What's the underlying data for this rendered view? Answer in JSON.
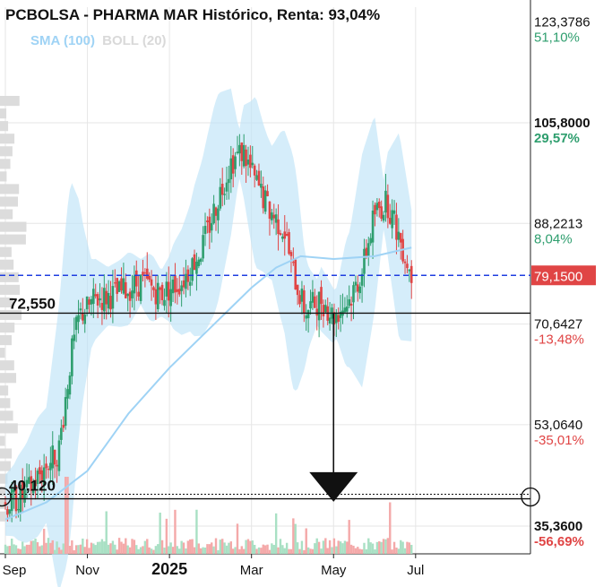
{
  "chart_data": {
    "type": "candlestick",
    "title": "PCBOLSA - PHARMA MAR Histórico, Renta: 93,04%",
    "legend": {
      "sma": "SMA (100)",
      "boll": "BOLL (20)"
    },
    "ylim": [
      30.5,
      126
    ],
    "x_ticks": [
      {
        "label": "Sep",
        "month": 0.0
      },
      {
        "label": "Nov",
        "month": 2.0
      },
      {
        "label": "2025",
        "month": 4.0,
        "bold": true
      },
      {
        "label": "Mar",
        "month": 6.0
      },
      {
        "label": "May",
        "month": 8.0
      },
      {
        "label": "Jul",
        "month": 10.0
      }
    ],
    "x_range_months": [
      0,
      12.8
    ],
    "y_levels": [
      {
        "price": "123,3786",
        "pct": "51,10%",
        "value": 123.3786,
        "pct_color": "#2e9e6e",
        "line": false,
        "bold": false
      },
      {
        "price": "105,8000",
        "pct": "29,57%",
        "value": 105.8,
        "pct_color": "#2e9e6e",
        "line": true,
        "bold": true
      },
      {
        "price": "88,2213",
        "pct": "8,04%",
        "value": 88.2213,
        "pct_color": "#2e9e6e",
        "line": true,
        "bold": false
      },
      {
        "price": "70,6427",
        "pct": "-13,48%",
        "value": 70.6427,
        "pct_color": "#e04545",
        "line": true,
        "bold": false
      },
      {
        "price": "53,0640",
        "pct": "-35,01%",
        "value": 53.064,
        "pct_color": "#e04545",
        "line": true,
        "bold": false
      },
      {
        "price": "35,3600",
        "pct": "-56,69%",
        "value": 35.36,
        "pct_color": "#e04545",
        "line": true,
        "bold": true
      }
    ],
    "current_price": {
      "label": "79,1500",
      "value": 79.15,
      "color": "#e04545"
    },
    "support_levels": [
      {
        "label": "72,550",
        "value": 72.55
      },
      {
        "label": "40,120",
        "value": 40.12
      }
    ],
    "target_value": 39.6,
    "price_path": [
      {
        "month": 0.0,
        "close": 39.0
      },
      {
        "month": 0.5,
        "close": 41.0
      },
      {
        "month": 1.0,
        "close": 46.0
      },
      {
        "month": 1.3,
        "close": 48.5
      },
      {
        "month": 1.6,
        "close": 65.0
      },
      {
        "month": 1.8,
        "close": 72.0
      },
      {
        "month": 2.2,
        "close": 75.0
      },
      {
        "month": 2.8,
        "close": 76.0
      },
      {
        "month": 3.3,
        "close": 78.0
      },
      {
        "month": 3.8,
        "close": 76.0
      },
      {
        "month": 4.3,
        "close": 78.0
      },
      {
        "month": 4.8,
        "close": 84.0
      },
      {
        "month": 5.2,
        "close": 93.0
      },
      {
        "month": 5.5,
        "close": 99.0
      },
      {
        "month": 5.8,
        "close": 101.0
      },
      {
        "month": 6.0,
        "close": 97.0
      },
      {
        "month": 6.4,
        "close": 91.0
      },
      {
        "month": 6.8,
        "close": 87.0
      },
      {
        "month": 7.0,
        "close": 80.0
      },
      {
        "month": 7.3,
        "close": 73.0
      },
      {
        "month": 7.7,
        "close": 75.0
      },
      {
        "month": 8.0,
        "close": 72.0
      },
      {
        "month": 8.4,
        "close": 75.0
      },
      {
        "month": 8.7,
        "close": 80.0
      },
      {
        "month": 9.0,
        "close": 90.0
      },
      {
        "month": 9.3,
        "close": 92.0
      },
      {
        "month": 9.6,
        "close": 86.0
      },
      {
        "month": 9.9,
        "close": 79.15
      }
    ],
    "sma_100": [
      {
        "month": 0.0,
        "value": 36.5
      },
      {
        "month": 1.0,
        "value": 39.5
      },
      {
        "month": 2.0,
        "value": 45.0
      },
      {
        "month": 3.0,
        "value": 55.0
      },
      {
        "month": 4.0,
        "value": 63.0
      },
      {
        "month": 5.0,
        "value": 70.0
      },
      {
        "month": 6.0,
        "value": 77.0
      },
      {
        "month": 6.6,
        "value": 80.5
      },
      {
        "month": 7.2,
        "value": 82.5
      },
      {
        "month": 8.0,
        "value": 82.0
      },
      {
        "month": 9.0,
        "value": 82.5
      },
      {
        "month": 9.9,
        "value": 84.0
      }
    ]
  },
  "colors": {
    "up": "#2e9e6e",
    "down": "#e04545",
    "band": "#bfe3f7",
    "sma": "#9fd3f5",
    "dashed": "#1f3ee0"
  }
}
